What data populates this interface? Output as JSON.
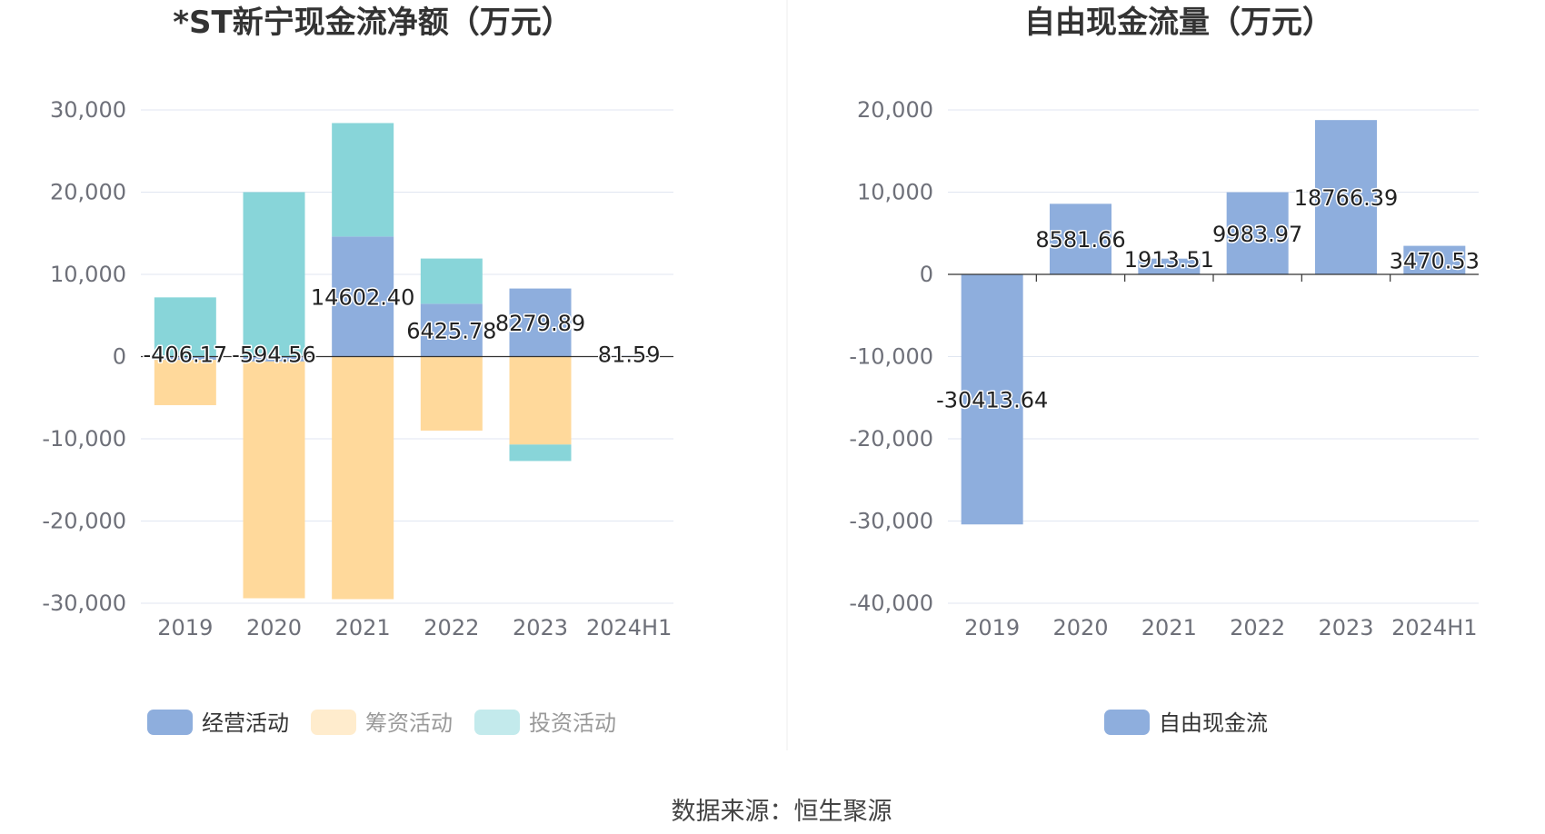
{
  "chart_data": [
    {
      "type": "bar",
      "stacked": true,
      "title": "*ST新宁现金流净额（万元）",
      "categories": [
        "2019",
        "2020",
        "2021",
        "2022",
        "2023",
        "2024H1"
      ],
      "ylim": [
        -30000,
        30000
      ],
      "yticks": [
        30000,
        20000,
        10000,
        0,
        -10000,
        -20000,
        -30000
      ],
      "ytick_labels": [
        "30,000",
        "20,000",
        "10,000",
        "0",
        "-10,000",
        "-20,000",
        "-30,000"
      ],
      "grid": true,
      "legend_position": "bottom",
      "series": [
        {
          "name": "经营活动",
          "color": "#8eaedd",
          "values": [
            -406.17,
            -594.56,
            14602.4,
            6425.78,
            8279.89,
            81.59
          ],
          "labels": [
            "-406.17",
            "-594.56",
            "14602.40",
            "6425.78",
            "8279.89",
            "81.59"
          ],
          "legend_active": true
        },
        {
          "name": "筹资活动",
          "color": "#ffd99b",
          "values": [
            -5500,
            -28800,
            -29500,
            -9000,
            -10700,
            0
          ],
          "legend_active": false
        },
        {
          "name": "投资活动",
          "color": "#88d5d9",
          "values": [
            7200,
            20000,
            13800,
            5500,
            -2000,
            0
          ],
          "legend_active": false
        }
      ]
    },
    {
      "type": "bar",
      "title": "自由现金流量（万元）",
      "categories": [
        "2019",
        "2020",
        "2021",
        "2022",
        "2023",
        "2024H1"
      ],
      "ylim": [
        -40000,
        20000
      ],
      "yticks": [
        20000,
        10000,
        0,
        -10000,
        -20000,
        -30000,
        -40000
      ],
      "ytick_labels": [
        "20,000",
        "10,000",
        "0",
        "-10,000",
        "-20,000",
        "-30,000",
        "-40,000"
      ],
      "grid": true,
      "legend_position": "bottom",
      "series": [
        {
          "name": "自由现金流",
          "color": "#8eaedd",
          "values": [
            -30413.64,
            8581.66,
            1913.51,
            9983.97,
            18766.39,
            3470.53
          ],
          "labels": [
            "-30413.64",
            "8581.66",
            "1913.51",
            "9983.97",
            "18766.39",
            "3470.53"
          ],
          "legend_active": true
        }
      ]
    }
  ],
  "source_text": "数据来源：恒生聚源",
  "colors": {
    "grid": "#e0e6f1",
    "axis": "#333333",
    "tick_text": "#6e7079",
    "legend_inactive_text": "#999999",
    "legend_active_text": "#333333"
  }
}
